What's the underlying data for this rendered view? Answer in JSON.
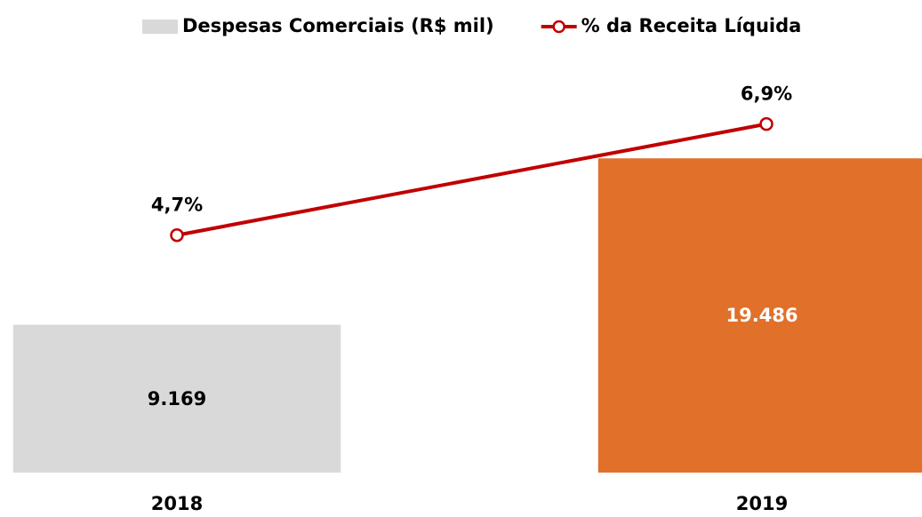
{
  "chart_data": {
    "type": "bar",
    "categories": [
      "2018",
      "2019"
    ],
    "series": [
      {
        "name": "Despesas Comerciais (R$ mil)",
        "type": "bar",
        "color": "#d9d9d9",
        "point_colors": [
          "#d9d9d9",
          "#e0702a"
        ],
        "values": [
          9169,
          19486
        ],
        "value_labels": [
          "9.169",
          "19.486"
        ]
      },
      {
        "name": "% da Receita Líquida",
        "type": "line",
        "axis": "y2",
        "color": "#c00000",
        "values": [
          4.7,
          6.9
        ],
        "value_labels": [
          "4,7%",
          "6,9%"
        ]
      }
    ],
    "ylim": [
      0,
      26000
    ],
    "y2lim": [
      0,
      8.3
    ],
    "legend": "top"
  }
}
